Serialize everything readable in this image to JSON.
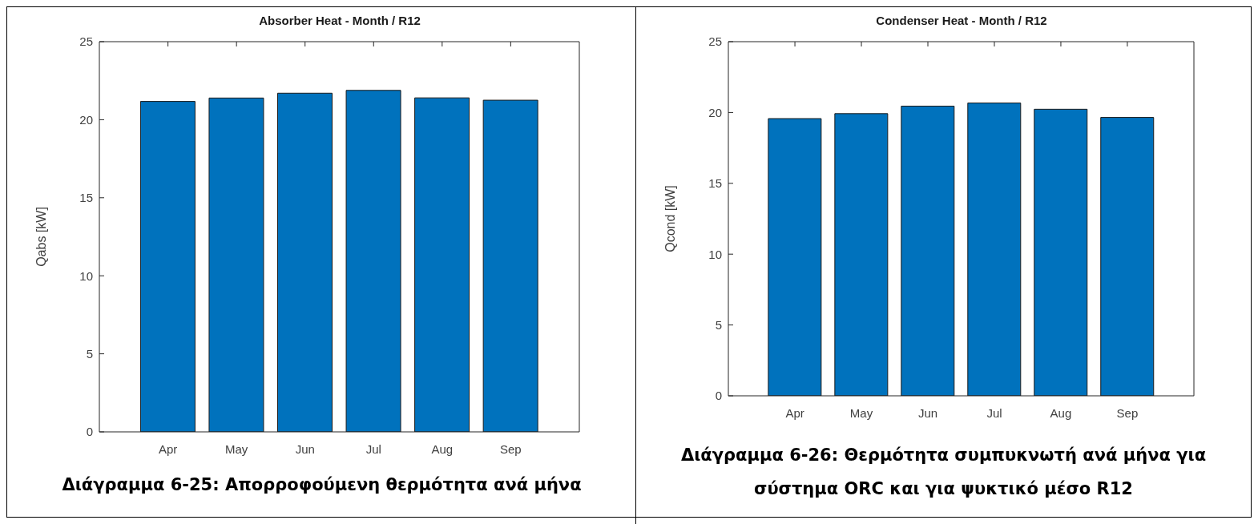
{
  "chart_data": [
    {
      "type": "bar",
      "title": "Absorber Heat - Month / R12",
      "ylabel": "Qabs [kW]",
      "categories": [
        "Apr",
        "May",
        "Jun",
        "Jul",
        "Aug",
        "Sep"
      ],
      "values": [
        21.17,
        21.39,
        21.7,
        21.88,
        21.4,
        21.25
      ],
      "color": "#0072bd",
      "ylim": [
        0,
        25
      ],
      "yticks": [
        0,
        5,
        10,
        15,
        20,
        25
      ],
      "grid": false,
      "annotations": [
        "Διάγραμμα 6-25: Απορροφούμενη θερμότητα ανά μήνα"
      ]
    },
    {
      "type": "bar",
      "title": "Condenser Heat - Month / R12",
      "ylabel": "Qcond [kW]",
      "categories": [
        "Apr",
        "May",
        "Jun",
        "Jul",
        "Aug",
        "Sep"
      ],
      "values": [
        19.57,
        19.92,
        20.45,
        20.67,
        20.23,
        19.65
      ],
      "color": "#0072bd",
      "ylim": [
        0,
        25
      ],
      "yticks": [
        0,
        5,
        10,
        15,
        20,
        25
      ],
      "grid": false,
      "annotations": [
        "Διάγραμμα 6-26: Θερμότητα συμπυκνωτή ανά μήνα για σύστημα ORC και για ψυκτικό μέσο R12"
      ]
    }
  ]
}
